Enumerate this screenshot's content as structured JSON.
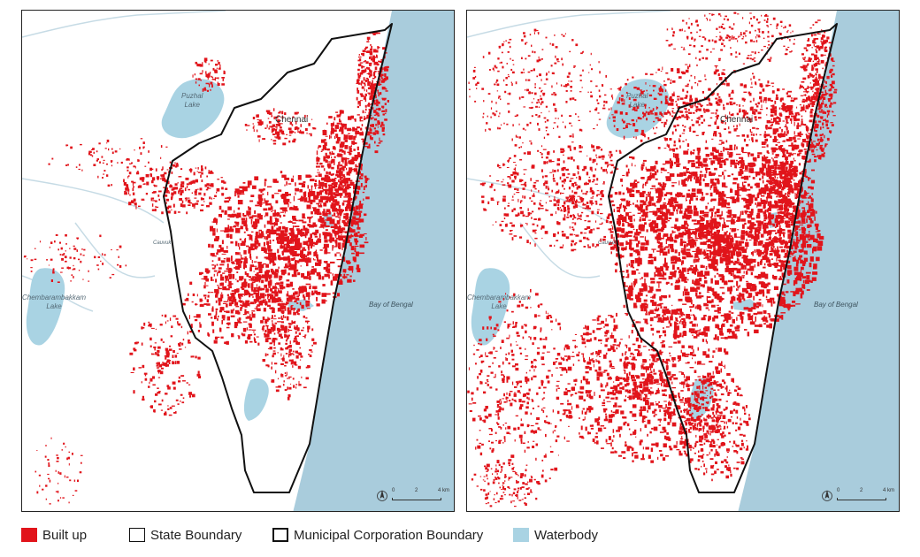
{
  "colors": {
    "built_up": "#e1141b",
    "waterbody": "#a9d3e3",
    "sea": "#a9ccdc",
    "boundary": "#111111"
  },
  "panels": [
    {
      "id": "left",
      "labels": {
        "puzhal_lake": "Puzhal\nLake",
        "chennai": "Chennai",
        "chembarambakkam_lake": "Chembarambakkam\nLake",
        "bay": "Bay of Bengal",
        "cauvuk": "Cauvuk",
        "scale": [
          "0",
          "2",
          "4 km"
        ]
      }
    },
    {
      "id": "right",
      "labels": {
        "puzhal_lake": "Puzhal\nLake",
        "chennai": "Chennai",
        "chembarambakkam_lake": "Chembarambakkam\nLake",
        "bay": "Bay of Bengal",
        "cauvuk": "Cauvuk",
        "scale": [
          "0",
          "2",
          "4 km"
        ]
      }
    }
  ],
  "legend": {
    "built_up": "Built up",
    "state_boundary": "State Boundary",
    "municipal_boundary": "Municipal Corporation Boundary",
    "waterbody": "Waterbody"
  }
}
